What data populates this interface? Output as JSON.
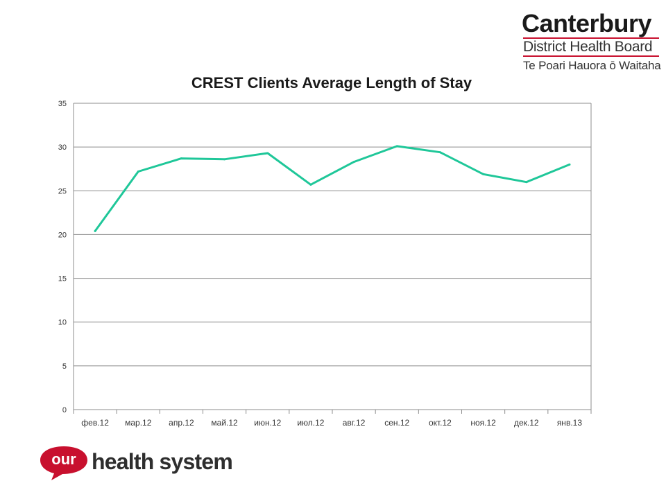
{
  "header": {
    "org_name": "Canterbury",
    "org_subtitle": "District Health Board",
    "org_maori": "Te Poari Hauora ō Waitaha"
  },
  "footer": {
    "bubble_text": "our",
    "brand_text": "health system"
  },
  "colors": {
    "series_line": "#1fc799",
    "brand_red": "#c8102e",
    "grid": "#8c8c8c"
  },
  "chart_data": {
    "type": "line",
    "title": "CREST Clients Average Length of Stay",
    "xlabel": "",
    "ylabel": "",
    "categories": [
      "фев.12",
      "мар.12",
      "апр.12",
      "май.12",
      "июн.12",
      "июл.12",
      "авг.12",
      "сен.12",
      "окт.12",
      "ноя.12",
      "дек.12",
      "янв.13"
    ],
    "series": [
      {
        "values": [
          20.4,
          27.2,
          28.7,
          28.6,
          29.3,
          25.7,
          28.3,
          30.1,
          29.4,
          26.9,
          26.0,
          28.0
        ]
      }
    ],
    "ylim": [
      0,
      35
    ],
    "yticks": [
      0,
      5,
      10,
      15,
      20,
      25,
      30,
      35
    ],
    "grid": true,
    "legend": "none"
  }
}
